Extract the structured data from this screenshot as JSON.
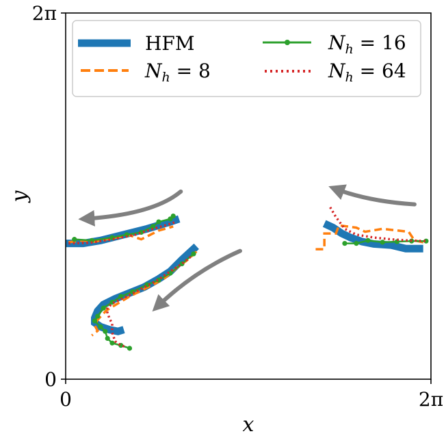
{
  "chart_data": {
    "type": "line",
    "xlabel": "x",
    "ylabel": "y",
    "xlim": [
      0,
      6.2832
    ],
    "ylim": [
      0,
      6.2832
    ],
    "xticks": [
      {
        "value": 0,
        "label": "0"
      },
      {
        "value": 6.2832,
        "label": "2π"
      }
    ],
    "yticks": [
      {
        "value": 0,
        "label": "0"
      },
      {
        "value": 6.2832,
        "label": "2π"
      }
    ],
    "grid": false,
    "legend": {
      "placement": "top",
      "columns": 2
    },
    "series": [
      {
        "name": "HFM",
        "color": "#1f77b4",
        "style": "solid-thick",
        "segments": [
          [
            [
              0.0,
              2.33
            ],
            [
              0.3,
              2.33
            ],
            [
              0.6,
              2.38
            ],
            [
              1.0,
              2.48
            ],
            [
              1.4,
              2.58
            ],
            [
              1.8,
              2.7
            ],
            [
              1.95,
              2.75
            ]
          ],
          [
            [
              2.25,
              2.28
            ],
            [
              2.0,
              2.05
            ],
            [
              1.8,
              1.85
            ],
            [
              1.6,
              1.72
            ],
            [
              1.35,
              1.58
            ],
            [
              1.1,
              1.48
            ],
            [
              0.85,
              1.38
            ],
            [
              0.65,
              1.28
            ],
            [
              0.55,
              1.17
            ],
            [
              0.5,
              1.05
            ],
            [
              0.5,
              0.97
            ],
            [
              0.6,
              0.9
            ],
            [
              0.75,
              0.85
            ],
            [
              0.9,
              0.82
            ],
            [
              1.0,
              0.85
            ]
          ],
          [
            [
              4.45,
              2.67
            ],
            [
              4.6,
              2.6
            ],
            [
              4.75,
              2.5
            ],
            [
              4.9,
              2.43
            ],
            [
              5.1,
              2.36
            ],
            [
              5.3,
              2.32
            ],
            [
              5.6,
              2.3
            ],
            [
              5.85,
              2.24
            ],
            [
              6.15,
              2.24
            ]
          ]
        ]
      },
      {
        "name": "N_h = 8",
        "color": "#ff7f0e",
        "style": "dashed",
        "segments": [
          [
            [
              0.05,
              2.35
            ],
            [
              0.3,
              2.38
            ],
            [
              0.5,
              2.36
            ],
            [
              0.8,
              2.42
            ],
            [
              1.1,
              2.47
            ],
            [
              1.3,
              2.4
            ],
            [
              1.6,
              2.55
            ],
            [
              1.85,
              2.62
            ]
          ],
          [
            [
              2.25,
              2.19
            ],
            [
              2.1,
              2.05
            ],
            [
              1.9,
              1.9
            ],
            [
              1.7,
              1.73
            ],
            [
              1.5,
              1.62
            ],
            [
              1.3,
              1.52
            ],
            [
              1.1,
              1.42
            ],
            [
              0.9,
              1.3
            ],
            [
              0.7,
              1.18
            ],
            [
              0.55,
              1.02
            ],
            [
              0.5,
              0.92
            ],
            [
              0.55,
              0.83
            ],
            [
              0.45,
              0.75
            ]
          ],
          [
            [
              4.3,
              2.23
            ],
            [
              4.45,
              2.23
            ],
            [
              4.45,
              2.5
            ],
            [
              4.65,
              2.5
            ],
            [
              4.7,
              2.64
            ],
            [
              5.0,
              2.6
            ],
            [
              5.15,
              2.53
            ],
            [
              5.45,
              2.58
            ],
            [
              5.9,
              2.53
            ],
            [
              6.0,
              2.38
            ],
            [
              6.2,
              2.34
            ]
          ]
        ]
      },
      {
        "name": "N_h = 16",
        "color": "#2ca02c",
        "style": "solid-marker",
        "segments": [
          [
            [
              0.15,
              2.4
            ],
            [
              0.45,
              2.38
            ],
            [
              0.8,
              2.43
            ],
            [
              1.05,
              2.48
            ],
            [
              1.3,
              2.52
            ],
            [
              1.5,
              2.62
            ],
            [
              1.6,
              2.7
            ],
            [
              1.8,
              2.75
            ],
            [
              1.85,
              2.8
            ]
          ],
          [
            [
              2.2,
              2.15
            ],
            [
              2.0,
              1.98
            ],
            [
              1.8,
              1.82
            ],
            [
              1.6,
              1.7
            ],
            [
              1.4,
              1.62
            ],
            [
              1.15,
              1.5
            ],
            [
              0.95,
              1.42
            ],
            [
              0.8,
              1.32
            ],
            [
              0.65,
              1.22
            ],
            [
              0.55,
              1.08
            ],
            [
              0.5,
              1.0
            ],
            [
              0.6,
              0.9
            ],
            [
              0.68,
              0.82
            ],
            [
              0.72,
              0.7
            ],
            [
              0.8,
              0.62
            ],
            [
              0.95,
              0.58
            ],
            [
              1.1,
              0.53
            ]
          ],
          [
            [
              4.8,
              2.33
            ],
            [
              5.0,
              2.33
            ],
            [
              5.2,
              2.38
            ],
            [
              5.45,
              2.35
            ],
            [
              5.7,
              2.36
            ],
            [
              5.95,
              2.37
            ],
            [
              6.2,
              2.37
            ]
          ]
        ]
      },
      {
        "name": "N_h = 64",
        "color": "#d62728",
        "style": "dotted",
        "segments": [
          [
            [
              0.05,
              2.33
            ],
            [
              0.4,
              2.34
            ],
            [
              0.8,
              2.4
            ],
            [
              1.2,
              2.48
            ],
            [
              1.5,
              2.58
            ],
            [
              1.75,
              2.65
            ],
            [
              1.9,
              2.7
            ]
          ],
          [
            [
              2.15,
              2.1
            ],
            [
              2.0,
              1.98
            ],
            [
              1.8,
              1.85
            ],
            [
              1.55,
              1.68
            ],
            [
              1.3,
              1.55
            ],
            [
              1.05,
              1.42
            ],
            [
              0.8,
              1.3
            ],
            [
              0.7,
              1.2
            ],
            [
              0.75,
              1.05
            ],
            [
              0.8,
              0.95
            ],
            [
              0.8,
              0.8
            ],
            [
              0.85,
              0.65
            ],
            [
              0.95,
              0.58
            ],
            [
              1.05,
              0.55
            ]
          ],
          [
            [
              4.55,
              2.95
            ],
            [
              4.65,
              2.78
            ],
            [
              4.8,
              2.58
            ],
            [
              5.0,
              2.48
            ],
            [
              5.3,
              2.43
            ],
            [
              5.6,
              2.4
            ],
            [
              5.9,
              2.38
            ],
            [
              6.2,
              2.37
            ]
          ]
        ]
      }
    ],
    "arrows": [
      {
        "color": "#808080",
        "from": [
          1.98,
          3.22
        ],
        "ctrl": [
          1.5,
          2.82
        ],
        "to": [
          0.3,
          2.75
        ]
      },
      {
        "color": "#808080",
        "from": [
          3.0,
          2.2
        ],
        "ctrl": [
          2.2,
          1.85
        ],
        "to": [
          1.55,
          1.22
        ]
      },
      {
        "color": "#808080",
        "from": [
          6.0,
          3.0
        ],
        "ctrl": [
          5.2,
          3.05
        ],
        "to": [
          4.6,
          3.28
        ]
      }
    ]
  },
  "legend": [
    {
      "key": "hfm",
      "label": "HFM",
      "math": false
    },
    {
      "key": "nh8",
      "label": "N_h = 8",
      "math": true
    },
    {
      "key": "nh16",
      "label": "N_h = 16",
      "math": true
    },
    {
      "key": "nh64",
      "label": "N_h = 64",
      "math": true
    }
  ]
}
